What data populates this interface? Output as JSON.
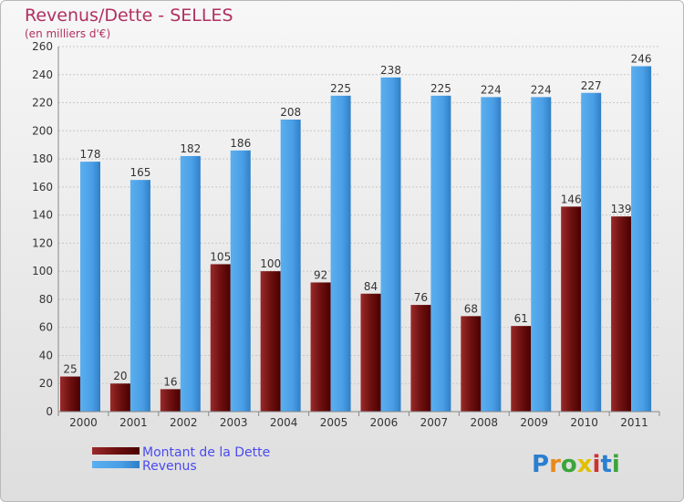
{
  "chart_data": {
    "type": "bar",
    "title": "Revenus/Dette - SELLES",
    "subtitle": "(en milliers d'€)",
    "categories": [
      "2000",
      "2001",
      "2002",
      "2003",
      "2004",
      "2005",
      "2006",
      "2007",
      "2008",
      "2009",
      "2010",
      "2011"
    ],
    "series": [
      {
        "name": "Montant de la Dette",
        "color": "#7a1010",
        "values": [
          25,
          20,
          16,
          105,
          100,
          92,
          84,
          76,
          68,
          61,
          146,
          139
        ]
      },
      {
        "name": "Revenus",
        "color": "#4a9ee6",
        "values": [
          178,
          165,
          182,
          186,
          208,
          225,
          238,
          225,
          224,
          224,
          227,
          246
        ]
      }
    ],
    "ylim": [
      0,
      260
    ],
    "yticks": [
      0,
      20,
      40,
      60,
      80,
      100,
      120,
      140,
      160,
      180,
      200,
      220,
      240,
      260
    ],
    "grid": true,
    "legend_position": "bottom-left"
  },
  "logo": {
    "letters": [
      "P",
      "r",
      "o",
      "x",
      "i",
      "t",
      "i"
    ],
    "colors": [
      "#2a7fd0",
      "#e88a1a",
      "#3aa53a",
      "#e0c000",
      "#d03030",
      "#2a7fd0",
      "#3aa53a"
    ]
  }
}
